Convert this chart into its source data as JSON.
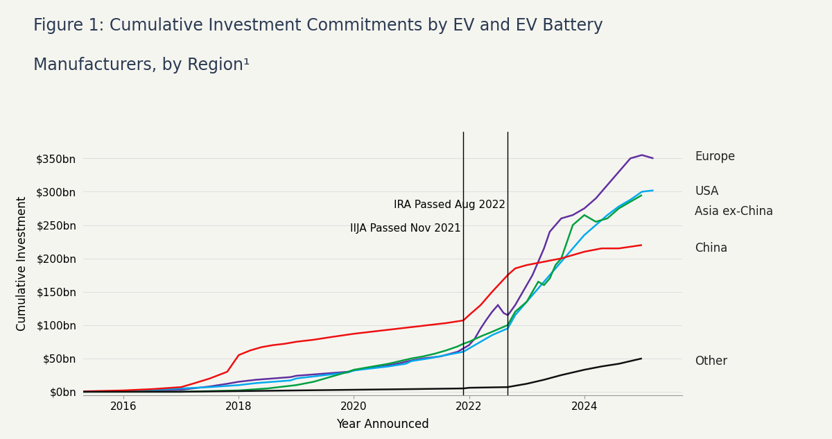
{
  "title_line1": "Figure 1: Cumulative Investment Commitments by EV and EV Battery",
  "title_line2": "Manufacturers, by Region¹",
  "xlabel": "Year Announced",
  "ylabel": "Cumulative Investment",
  "yticks": [
    0,
    50,
    100,
    150,
    200,
    250,
    300,
    350
  ],
  "ytick_labels": [
    "$0bn",
    "$50bn",
    "$100bn",
    "$150bn",
    "$200bn",
    "$250bn",
    "$300bn",
    "$350bn"
  ],
  "xlim": [
    2015.3,
    2025.7
  ],
  "ylim": [
    -5,
    390
  ],
  "title_color": "#2D3561",
  "vline_iija": 2021.9,
  "vline_ira": 2022.67,
  "series": [
    {
      "name": "Europe",
      "color": "#6030A0",
      "x": [
        2015.0,
        2015.3,
        2016.0,
        2016.5,
        2017.0,
        2017.2,
        2017.5,
        2017.8,
        2018.0,
        2018.3,
        2018.6,
        2018.9,
        2019.0,
        2019.3,
        2019.6,
        2019.9,
        2020.0,
        2020.2,
        2020.5,
        2020.8,
        2021.0,
        2021.2,
        2021.5,
        2021.8,
        2021.9,
        2022.0,
        2022.1,
        2022.2,
        2022.3,
        2022.4,
        2022.5,
        2022.6,
        2022.67,
        2022.7,
        2022.8,
        2022.9,
        2023.0,
        2023.1,
        2023.2,
        2023.3,
        2023.4,
        2023.6,
        2023.8,
        2024.0,
        2024.2,
        2024.4,
        2024.6,
        2024.8,
        2025.0,
        2025.2
      ],
      "y": [
        0,
        0,
        1,
        2,
        3,
        5,
        8,
        12,
        15,
        18,
        20,
        22,
        24,
        26,
        28,
        30,
        32,
        35,
        38,
        43,
        47,
        50,
        53,
        60,
        65,
        70,
        80,
        95,
        108,
        120,
        130,
        118,
        115,
        118,
        130,
        145,
        160,
        175,
        195,
        215,
        240,
        260,
        265,
        275,
        290,
        310,
        330,
        350,
        355,
        350
      ]
    },
    {
      "name": "USA",
      "color": "#00AAEE",
      "x": [
        2015.0,
        2016.0,
        2016.5,
        2017.0,
        2017.5,
        2018.0,
        2018.3,
        2018.6,
        2018.9,
        2019.0,
        2019.3,
        2019.6,
        2019.9,
        2020.0,
        2020.3,
        2020.6,
        2020.9,
        2021.0,
        2021.3,
        2021.6,
        2021.9,
        2022.0,
        2022.2,
        2022.4,
        2022.67,
        2022.8,
        2023.0,
        2023.2,
        2023.4,
        2023.6,
        2023.8,
        2024.0,
        2024.2,
        2024.4,
        2024.6,
        2024.8,
        2025.0,
        2025.2
      ],
      "y": [
        0,
        1,
        3,
        5,
        7,
        10,
        13,
        15,
        17,
        20,
        23,
        26,
        29,
        32,
        35,
        38,
        42,
        46,
        50,
        55,
        60,
        65,
        75,
        85,
        95,
        115,
        135,
        155,
        175,
        195,
        215,
        235,
        250,
        265,
        278,
        288,
        300,
        302
      ]
    },
    {
      "name": "Asia ex-China",
      "color": "#00A040",
      "x": [
        2015.0,
        2016.0,
        2017.0,
        2018.0,
        2018.5,
        2019.0,
        2019.3,
        2019.5,
        2019.7,
        2019.9,
        2020.0,
        2020.2,
        2020.4,
        2020.6,
        2020.8,
        2021.0,
        2021.2,
        2021.4,
        2021.6,
        2021.8,
        2021.9,
        2022.0,
        2022.2,
        2022.4,
        2022.67,
        2022.8,
        2023.0,
        2023.1,
        2023.2,
        2023.3,
        2023.4,
        2023.5,
        2023.6,
        2023.8,
        2024.0,
        2024.2,
        2024.4,
        2024.6,
        2024.8,
        2025.0
      ],
      "y": [
        0,
        0,
        0,
        2,
        5,
        10,
        15,
        20,
        25,
        30,
        33,
        36,
        39,
        42,
        46,
        50,
        53,
        57,
        62,
        68,
        72,
        75,
        83,
        90,
        100,
        120,
        135,
        150,
        165,
        160,
        170,
        190,
        200,
        250,
        265,
        255,
        260,
        275,
        285,
        295
      ]
    },
    {
      "name": "China",
      "color": "#EE1010",
      "x": [
        2015.0,
        2015.5,
        2016.0,
        2016.5,
        2017.0,
        2017.2,
        2017.5,
        2017.8,
        2018.0,
        2018.2,
        2018.4,
        2018.6,
        2018.8,
        2019.0,
        2019.3,
        2019.6,
        2020.0,
        2020.3,
        2020.6,
        2021.0,
        2021.3,
        2021.6,
        2021.9,
        2022.0,
        2022.2,
        2022.4,
        2022.67,
        2022.8,
        2023.0,
        2023.3,
        2023.6,
        2024.0,
        2024.3,
        2024.6,
        2025.0
      ],
      "y": [
        0,
        1,
        2,
        4,
        7,
        12,
        20,
        30,
        55,
        62,
        67,
        70,
        72,
        75,
        78,
        82,
        87,
        90,
        93,
        97,
        100,
        103,
        107,
        115,
        130,
        150,
        175,
        185,
        190,
        195,
        200,
        210,
        215,
        215,
        220
      ]
    },
    {
      "name": "Other",
      "color": "#111111",
      "x": [
        2015.0,
        2016.0,
        2017.0,
        2018.0,
        2019.0,
        2020.0,
        2021.0,
        2021.9,
        2022.0,
        2022.67,
        2022.8,
        2023.0,
        2023.3,
        2023.6,
        2024.0,
        2024.3,
        2024.6,
        2025.0
      ],
      "y": [
        0,
        0,
        0,
        1,
        2,
        3,
        4,
        5,
        6,
        7,
        9,
        12,
        18,
        25,
        33,
        38,
        42,
        50
      ]
    }
  ],
  "legend_entries": [
    {
      "name": "Europe",
      "color": "#6030A0",
      "y": 352
    },
    {
      "name": "USA",
      "color": "#00AAEE",
      "y": 300
    },
    {
      "name": "Asia ex-China",
      "color": "#00A040",
      "y": 270
    },
    {
      "name": "China",
      "color": "#EE1010",
      "y": 215
    },
    {
      "name": "Other",
      "color": "#111111",
      "y": 46
    }
  ],
  "background_color": "#f5f5f0",
  "plot_bg_color": "#f5f5f0",
  "title_fontsize": 17,
  "axis_label_fontsize": 12,
  "tick_fontsize": 11,
  "legend_fontsize": 12,
  "annot_fontsize": 11
}
